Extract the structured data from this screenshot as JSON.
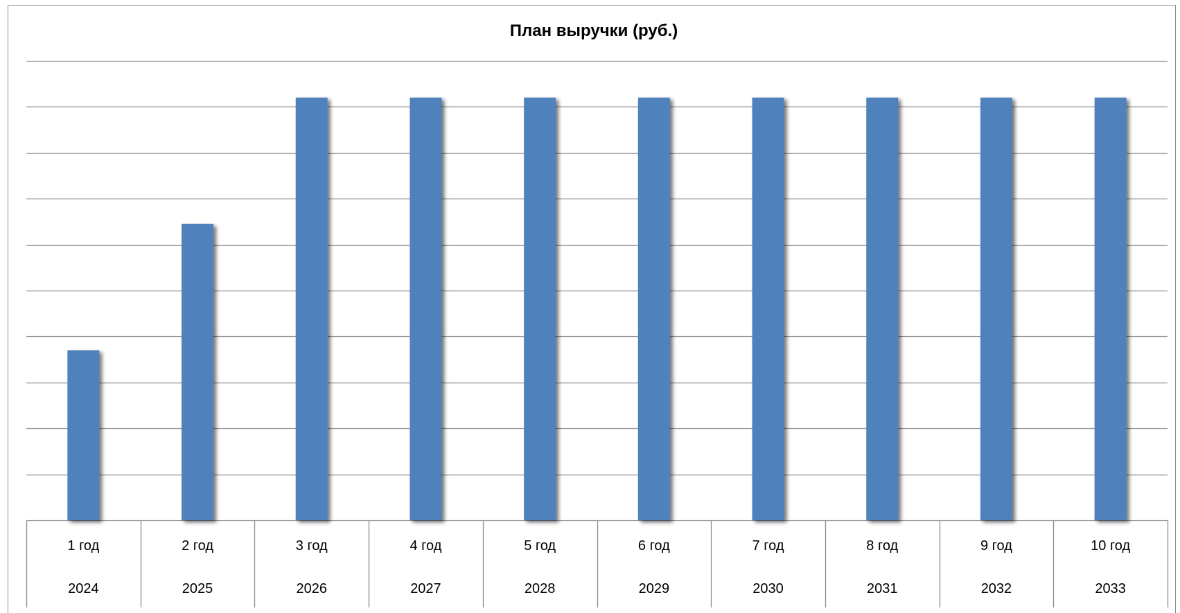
{
  "chart_data": {
    "type": "bar",
    "title": "План выручки (руб.)",
    "categories": [
      "1 год",
      "2 год",
      "3 год",
      "4 год",
      "5 год",
      "6 год",
      "7 год",
      "8 год",
      "9 год",
      "10 год"
    ],
    "categories_secondary": [
      "2024",
      "2025",
      "2026",
      "2027",
      "2028",
      "2029",
      "2030",
      "2031",
      "2032",
      "2033"
    ],
    "series": [
      {
        "values": [
          3.7,
          6.45,
          9.2,
          9.2,
          9.2,
          9.2,
          9.2,
          9.2,
          9.2,
          9.2
        ]
      }
    ],
    "ylim": [
      0,
      10
    ],
    "y_tick_labels_shown": false,
    "grid": true,
    "legend": "none",
    "bar_color": "#4f81bd"
  }
}
